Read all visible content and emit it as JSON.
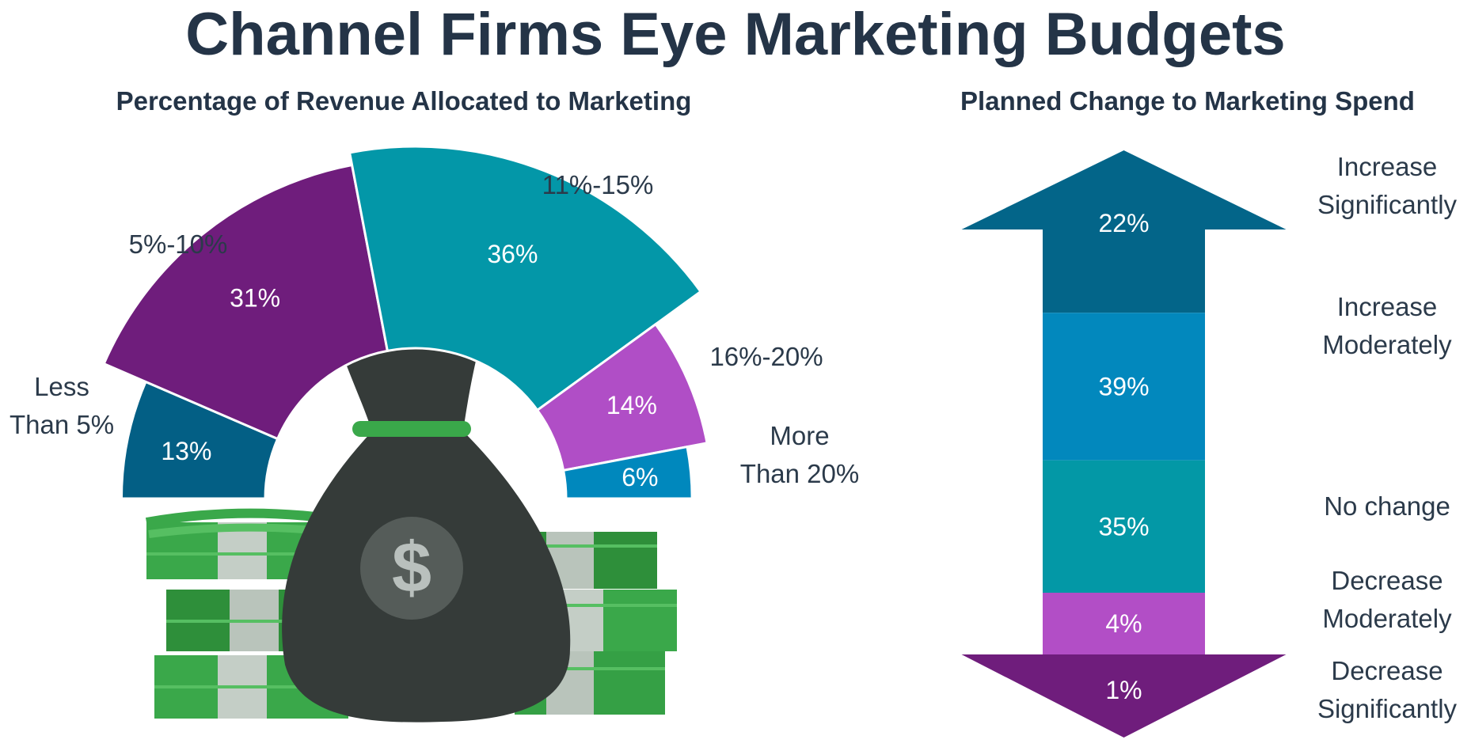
{
  "title": "Channel Firms Eye Marketing Budgets",
  "chart_data": [
    {
      "type": "pie",
      "variant": "semi-donut",
      "title": "Percentage of Revenue Allocated to Marketing",
      "categories": [
        "Less Than 5%",
        "5%-10%",
        "11%-15%",
        "16%-20%",
        "More Than 20%"
      ],
      "category_lines": [
        [
          "Less",
          "Than 5%"
        ],
        [
          "5%-10%"
        ],
        [
          "11%-15%"
        ],
        [
          "16%-20%"
        ],
        [
          "More",
          "Than 20%"
        ]
      ],
      "values": [
        13,
        31,
        36,
        14,
        6
      ],
      "value_labels": [
        "13%",
        "31%",
        "36%",
        "14%",
        "6%"
      ],
      "colors": [
        "#035f85",
        "#6f1d7c",
        "#0397a8",
        "#b04ec6",
        "#0088bd"
      ]
    },
    {
      "type": "bar",
      "variant": "stacked-arrow",
      "title": "Planned Change to Marketing Spend",
      "categories": [
        "Increase Significantly",
        "Increase Moderately",
        "No change",
        "Decrease Moderately",
        "Decrease Significantly"
      ],
      "category_lines": [
        [
          "Increase",
          "Significantly"
        ],
        [
          "Increase",
          "Moderately"
        ],
        [
          "No change"
        ],
        [
          "Decrease",
          "Moderately"
        ],
        [
          "Decrease",
          "Significantly"
        ]
      ],
      "values": [
        22,
        39,
        35,
        4,
        1
      ],
      "value_labels": [
        "22%",
        "39%",
        "35%",
        "4%",
        "1%"
      ],
      "colors": [
        "#036589",
        "#0288bd",
        "#0398a6",
        "#b24ec6",
        "#6f1d7c"
      ]
    }
  ],
  "illustration": {
    "description_icon": "money-bag-with-cash-stacks",
    "bag_symbol": "$"
  }
}
